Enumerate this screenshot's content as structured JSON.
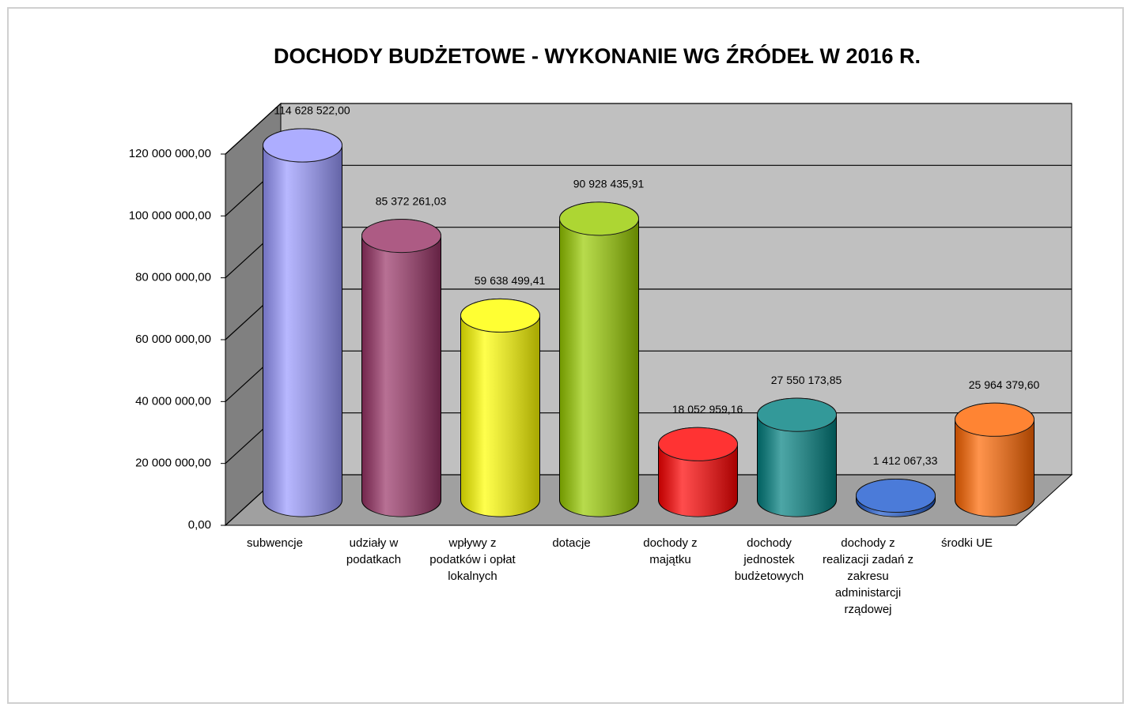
{
  "chart_data": {
    "type": "bar3d",
    "title": "DOCHODY BUDŻETOWE - WYKONANIE WG ŹRÓDEŁ W 2016 R.",
    "categories": [
      "subwencje",
      "udziały w podatkach",
      "wpływy z podatków i opłat lokalnych",
      "dotacje",
      "dochody z majątku",
      "dochody jednostek budżetowych",
      "dochody z realizacji zadań z zakresu administarcji rządowej",
      "środki UE"
    ],
    "values": [
      114628522.0,
      85372261.03,
      59638499.41,
      90928435.91,
      18052959.16,
      27550173.85,
      1412067.33,
      25964379.6
    ],
    "value_labels": [
      "114 628 522,00",
      "85 372 261,03",
      "59 638 499,41",
      "90 928 435,91",
      "18 052 959,16",
      "27 550 173,85",
      "1 412 067,33",
      "25 964 379,60"
    ],
    "colors": [
      "#9999ff",
      "#993366",
      "#ffff00",
      "#99cc00",
      "#ff0000",
      "#008080",
      "#1f5bd0",
      "#ff6600"
    ],
    "ylim": [
      0,
      120000000
    ],
    "yticks": [
      {
        "value": 0,
        "label": "0,00"
      },
      {
        "value": 20000000,
        "label": "20 000 000,00"
      },
      {
        "value": 40000000,
        "label": "40 000 000,00"
      },
      {
        "value": 60000000,
        "label": "60 000 000,00"
      },
      {
        "value": 80000000,
        "label": "80 000 000,00"
      },
      {
        "value": 100000000,
        "label": "100 000 000,00"
      },
      {
        "value": 120000000,
        "label": "120 000 000,00"
      }
    ],
    "grid": true
  }
}
